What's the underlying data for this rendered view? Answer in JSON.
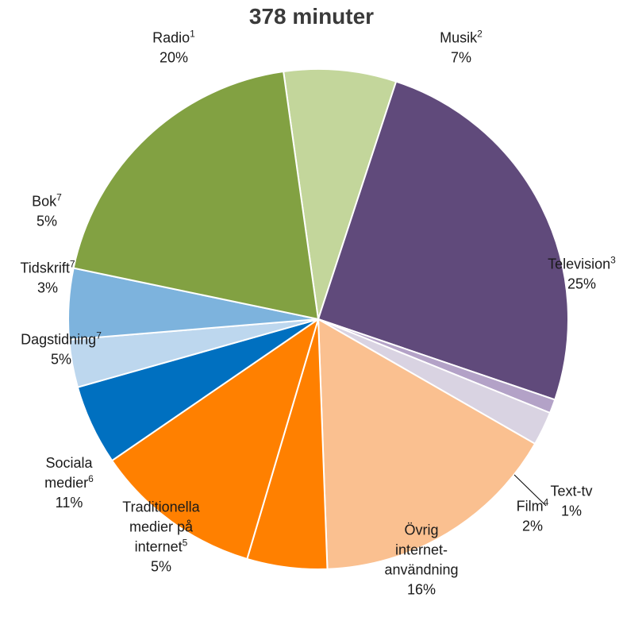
{
  "chart_data": {
    "type": "pie",
    "title": "378 minuter",
    "start_angle_deg": -8,
    "direction": "clockwise",
    "slices": [
      {
        "label_lines": [
          "Musik"
        ],
        "sup": "2",
        "value_label": "7%",
        "value": 7.3,
        "color": "#c3d69b"
      },
      {
        "label_lines": [
          "Television"
        ],
        "sup": "3",
        "value_label": "25%",
        "value": 25.3,
        "color": "#604a7b"
      },
      {
        "label_lines": [
          "Text-tv"
        ],
        "sup": "",
        "value_label": "1%",
        "value": 0.9,
        "color": "#b3a2c7"
      },
      {
        "label_lines": [
          "Film"
        ],
        "sup": "4",
        "value_label": "2%",
        "value": 2.2,
        "color": "#d9d3e2"
      },
      {
        "label_lines": [
          "Övrig",
          "internet-",
          "användning"
        ],
        "sup": "",
        "value_label": "16%",
        "value": 16.2,
        "color": "#fac090"
      },
      {
        "label_lines": [
          "Traditionella",
          "medier på",
          "internet"
        ],
        "sup": "5",
        "value_label": "5%",
        "value": 5.2,
        "color": "#ff8000"
      },
      {
        "label_lines": [
          "Sociala",
          "medier"
        ],
        "sup": "6",
        "value_label": "11%",
        "value": 10.9,
        "color": "#ff8000"
      },
      {
        "label_lines": [
          "Dagstidning"
        ],
        "sup": "7",
        "value_label": "5%",
        "value": 5.2,
        "color": "#0070c0"
      },
      {
        "label_lines": [
          "Tidskrift"
        ],
        "sup": "7",
        "value_label": "3%",
        "value": 3.1,
        "color": "#bdd7ee"
      },
      {
        "label_lines": [
          "Bok"
        ],
        "sup": "7",
        "value_label": "5%",
        "value": 4.6,
        "color": "#7db3dd"
      },
      {
        "label_lines": [
          "Radio"
        ],
        "sup": "1",
        "value_label": "20%",
        "value": 19.6,
        "color": "#82a142"
      }
    ]
  }
}
